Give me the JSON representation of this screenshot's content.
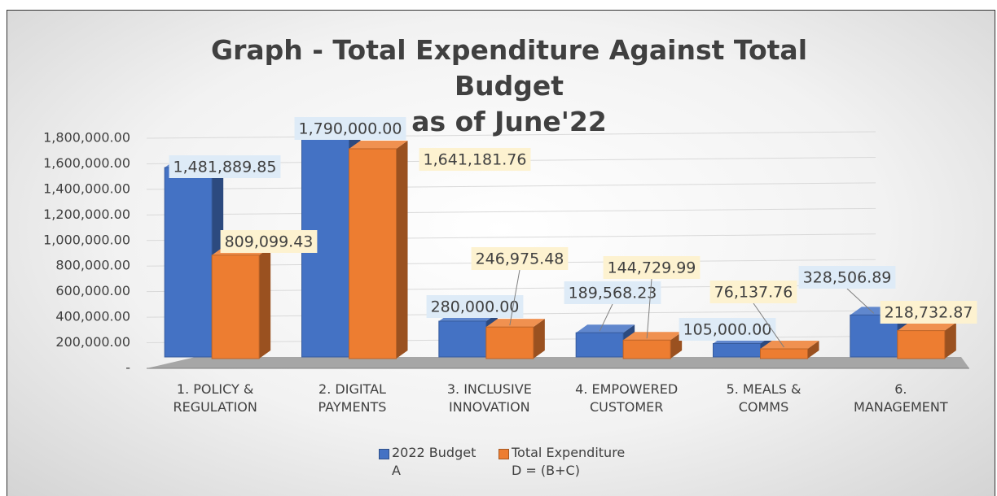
{
  "chart_data": {
    "type": "bar3d",
    "title": "Graph - Total Expenditure Against Total Budget\nas of June'22",
    "categories": [
      "1. POLICY &\nREGULATION",
      "2. DIGITAL\nPAYMENTS",
      "3. INCLUSIVE\nINNOVATION",
      "4. EMPOWERED\nCUSTOMER",
      "5. MEALS &\nCOMMS",
      "6.\nMANAGEMENT"
    ],
    "series": [
      {
        "name": "2022 Budget\nA",
        "color": "#4472c4",
        "values": [
          1481889.85,
          1790000,
          280000,
          189568.23,
          105000,
          328506.89
        ],
        "value_labels": [
          "1,481,889.85",
          "1,790,000.00",
          "280,000.00",
          "189,568.23",
          "105,000.00",
          "328,506.89"
        ]
      },
      {
        "name": "Total Expenditure\nD = (B+C)",
        "color": "#ed7d31",
        "values": [
          809099.43,
          1641181.76,
          246975.48,
          144729.99,
          76137.76,
          218732.87
        ],
        "value_labels": [
          "809,099.43",
          "1,641,181.76",
          "246,975.48",
          "144,729.99",
          "76,137.76",
          "218,732.87"
        ]
      }
    ],
    "ylim": [
      0,
      1800000
    ],
    "yticks": [
      {
        "value": 0,
        "label": "-"
      },
      {
        "value": 200000,
        "label": "200,000.00"
      },
      {
        "value": 400000,
        "label": "400,000.00"
      },
      {
        "value": 600000,
        "label": "600,000.00"
      },
      {
        "value": 800000,
        "label": "800,000.00"
      },
      {
        "value": 1000000,
        "label": "1,000,000.00"
      },
      {
        "value": 1200000,
        "label": "1,200,000.00"
      },
      {
        "value": 1400000,
        "label": "1,400,000.00"
      },
      {
        "value": 1600000,
        "label": "1,600,000.00"
      },
      {
        "value": 1800000,
        "label": "1,800,000.00"
      }
    ],
    "grid": true,
    "legend": "bottom"
  }
}
